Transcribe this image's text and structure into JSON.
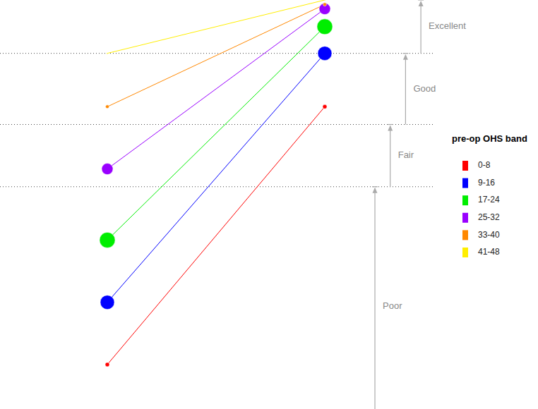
{
  "chart_data": {
    "type": "line",
    "legend_title": "pre-op OHS band",
    "legend": "right",
    "categories": [
      null,
      null
    ],
    "series": [
      {
        "name": "0-8",
        "color": "#ff0000",
        "values": [
          7,
          36
        ],
        "size": 9
      },
      {
        "name": "9-16",
        "color": "#0000ff",
        "values": [
          14,
          42
        ],
        "size": 100
      },
      {
        "name": "17-24",
        "color": "#00ee00",
        "values": [
          21,
          45
        ],
        "size": 121
      },
      {
        "name": "25-32",
        "color": "#9900ff",
        "values": [
          29,
          47
        ],
        "size": 64
      },
      {
        "name": "33-40",
        "color": "#ff8800",
        "values": [
          36,
          47.5
        ],
        "size": 6
      },
      {
        "name": "41-48",
        "color": "#ffee00",
        "values": [
          42,
          48
        ],
        "size": 1
      }
    ],
    "ylim": [
      2,
      48
    ],
    "tick_labels": false,
    "marker": "circle",
    "bands": [
      {
        "label": "Poor",
        "from": 0,
        "to": 27
      },
      {
        "label": "Fair",
        "from": 27,
        "to": 34
      },
      {
        "label": "Good",
        "from": 34,
        "to": 42
      },
      {
        "label": "Excellent",
        "from": 42,
        "to": 48
      }
    ]
  }
}
